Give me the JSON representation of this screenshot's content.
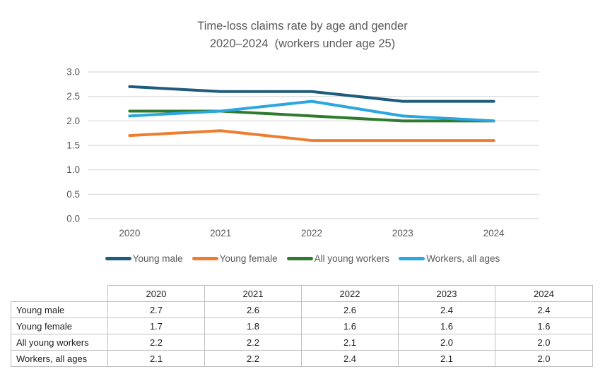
{
  "header": {
    "title_line1": "Time-loss claims rate by age and gender",
    "title_line2": "2020–2024  (workers under age 25)"
  },
  "chart_data": {
    "type": "line",
    "title": "Time-loss claims rate by age and gender 2020–2024 (workers under age 25)",
    "categories": [
      "2020",
      "2021",
      "2022",
      "2023",
      "2024"
    ],
    "series": [
      {
        "name": "Young male",
        "color": "#1f5b7d",
        "values": [
          2.7,
          2.6,
          2.6,
          2.4,
          2.4
        ]
      },
      {
        "name": "Young female",
        "color": "#ed7d31",
        "values": [
          1.7,
          1.8,
          1.6,
          1.6,
          1.6
        ]
      },
      {
        "name": "All young workers",
        "color": "#2e7b2e",
        "values": [
          2.2,
          2.2,
          2.1,
          2.0,
          2.0
        ]
      },
      {
        "name": "Workers, all ages",
        "color": "#2ba6de",
        "values": [
          2.1,
          2.2,
          2.4,
          2.1,
          2.0
        ]
      }
    ],
    "xlabel": "",
    "ylabel": "",
    "ylim": [
      0.0,
      3.0
    ],
    "y_ticks": [
      "3.0",
      "2.5",
      "2.0",
      "1.5",
      "1.0",
      "0.5",
      "0.0"
    ],
    "grid": true,
    "legend_position": "bottom",
    "colors": {
      "gridline": "#d9d9d9",
      "axis_text": "#595959",
      "title_text": "#595959",
      "table_border": "#bfbfbf",
      "table_text": "#1f1f1f"
    }
  },
  "table": {
    "header": [
      "",
      "2020",
      "2021",
      "2022",
      "2023",
      "2024"
    ],
    "rows": [
      {
        "label": "Young male",
        "values": [
          "2.7",
          "2.6",
          "2.6",
          "2.4",
          "2.4"
        ]
      },
      {
        "label": "Young female",
        "values": [
          "1.7",
          "1.8",
          "1.6",
          "1.6",
          "1.6"
        ]
      },
      {
        "label": "All young workers",
        "values": [
          "2.2",
          "2.2",
          "2.1",
          "2.0",
          "2.0"
        ]
      },
      {
        "label": "Workers, all ages",
        "values": [
          "2.1",
          "2.2",
          "2.4",
          "2.1",
          "2.0"
        ]
      }
    ]
  }
}
